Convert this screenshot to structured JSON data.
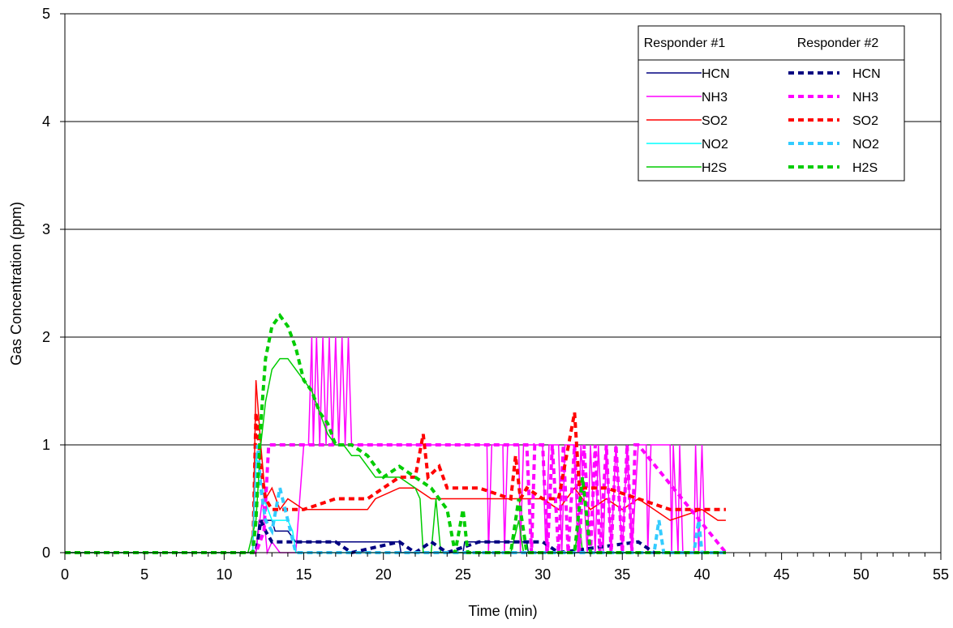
{
  "chart_data": {
    "type": "line",
    "title": "",
    "xlabel": "Time (min)",
    "ylabel": "Gas Concentration (ppm)",
    "xlim": [
      0,
      55
    ],
    "ylim": [
      0,
      5
    ],
    "x_ticks": [
      0,
      5,
      10,
      15,
      20,
      25,
      30,
      35,
      40,
      45,
      50,
      55
    ],
    "y_ticks": [
      0,
      1,
      2,
      3,
      4,
      5
    ],
    "grid": "horizontal",
    "legend": {
      "placement": "top-right",
      "group_headers": [
        "Responder #1",
        "Responder #2"
      ]
    },
    "series": [
      {
        "name": "HCN",
        "group": "Responder #1",
        "color": "#000080",
        "dash": "solid",
        "points": [
          [
            0,
            0
          ],
          [
            12,
            0
          ],
          [
            12.2,
            0.3
          ],
          [
            12.5,
            0.3
          ],
          [
            13,
            0.3
          ],
          [
            13.2,
            0.2
          ],
          [
            13.5,
            0.2
          ],
          [
            14,
            0.2
          ],
          [
            14.5,
            0.1
          ],
          [
            16,
            0.1
          ],
          [
            21,
            0.1
          ],
          [
            21.1,
            0
          ],
          [
            25,
            0
          ],
          [
            25.1,
            0.1
          ],
          [
            29,
            0.1
          ],
          [
            29.1,
            0
          ],
          [
            41.5,
            0
          ]
        ]
      },
      {
        "name": "NH3",
        "group": "Responder #1",
        "color": "#FF00FF",
        "dash": "solid",
        "points": [
          [
            0,
            0
          ],
          [
            12,
            0
          ],
          [
            12.4,
            0.5
          ],
          [
            12.7,
            0
          ],
          [
            13,
            0.1
          ],
          [
            13.5,
            0
          ],
          [
            14,
            0
          ],
          [
            14.5,
            0
          ],
          [
            15,
            1
          ],
          [
            15.3,
            1
          ],
          [
            15.5,
            2
          ],
          [
            15.6,
            1
          ],
          [
            15.8,
            2
          ],
          [
            16,
            1
          ],
          [
            16.2,
            2
          ],
          [
            16.4,
            1
          ],
          [
            16.6,
            2
          ],
          [
            16.8,
            1
          ],
          [
            17,
            2
          ],
          [
            17.2,
            1
          ],
          [
            17.4,
            2
          ],
          [
            17.6,
            1
          ],
          [
            17.8,
            2
          ],
          [
            18,
            1
          ],
          [
            21,
            1
          ],
          [
            25,
            1
          ],
          [
            26.5,
            1
          ],
          [
            26.6,
            0
          ],
          [
            26.8,
            1
          ],
          [
            27.5,
            1
          ],
          [
            27.6,
            0
          ],
          [
            27.8,
            1
          ],
          [
            28.5,
            1
          ],
          [
            28.6,
            0
          ],
          [
            28.8,
            1
          ],
          [
            30,
            1
          ],
          [
            30.2,
            0
          ],
          [
            30.4,
            1
          ],
          [
            31,
            1
          ],
          [
            31.2,
            0
          ],
          [
            31.4,
            1
          ],
          [
            32,
            1
          ],
          [
            32.2,
            0
          ],
          [
            32.4,
            1
          ],
          [
            32.8,
            0
          ],
          [
            33,
            1
          ],
          [
            33.3,
            0
          ],
          [
            33.5,
            1
          ],
          [
            33.8,
            0
          ],
          [
            34,
            1
          ],
          [
            34.3,
            0
          ],
          [
            34.6,
            1
          ],
          [
            35,
            0
          ],
          [
            35.3,
            1
          ],
          [
            35.6,
            0
          ],
          [
            36,
            1
          ],
          [
            36.5,
            1
          ],
          [
            36.6,
            0
          ],
          [
            36.8,
            1
          ],
          [
            38,
            1
          ],
          [
            38.1,
            0
          ],
          [
            38.2,
            1
          ],
          [
            38.5,
            0
          ],
          [
            38.6,
            1
          ],
          [
            38.8,
            0
          ],
          [
            39.5,
            0
          ],
          [
            39.6,
            1
          ],
          [
            39.8,
            0
          ],
          [
            40,
            1
          ],
          [
            40.2,
            0
          ],
          [
            41.5,
            0
          ]
        ]
      },
      {
        "name": "SO2",
        "group": "Responder #1",
        "color": "#FF0000",
        "dash": "solid",
        "points": [
          [
            0,
            0
          ],
          [
            11.8,
            0
          ],
          [
            12,
            1.6
          ],
          [
            12.3,
            1
          ],
          [
            12.6,
            0.5
          ],
          [
            13,
            0.6
          ],
          [
            13.5,
            0.4
          ],
          [
            14,
            0.5
          ],
          [
            15,
            0.4
          ],
          [
            17,
            0.4
          ],
          [
            19,
            0.4
          ],
          [
            19.5,
            0.5
          ],
          [
            21,
            0.6
          ],
          [
            22,
            0.6
          ],
          [
            23,
            0.5
          ],
          [
            23.5,
            0.5
          ],
          [
            25,
            0.5
          ],
          [
            26,
            0.5
          ],
          [
            28,
            0.5
          ],
          [
            30,
            0.5
          ],
          [
            31,
            0.4
          ],
          [
            32,
            0.6
          ],
          [
            33,
            0.4
          ],
          [
            34,
            0.5
          ],
          [
            35,
            0.4
          ],
          [
            36,
            0.5
          ],
          [
            37,
            0.4
          ],
          [
            38,
            0.3
          ],
          [
            40,
            0.4
          ],
          [
            41,
            0.3
          ],
          [
            41.5,
            0.3
          ]
        ]
      },
      {
        "name": "NO2",
        "group": "Responder #1",
        "color": "#00FFFF",
        "dash": "solid",
        "points": [
          [
            0,
            0
          ],
          [
            11.8,
            0
          ],
          [
            12,
            0.9
          ],
          [
            12.3,
            0.7
          ],
          [
            12.5,
            0.5
          ],
          [
            13,
            0.3
          ],
          [
            13.5,
            0.3
          ],
          [
            14,
            0.3
          ],
          [
            14.3,
            0.2
          ],
          [
            14.5,
            0
          ],
          [
            30,
            0
          ],
          [
            31,
            0
          ],
          [
            32,
            0
          ],
          [
            41.5,
            0
          ]
        ]
      },
      {
        "name": "H2S",
        "group": "Responder #1",
        "color": "#00CC00",
        "dash": "solid",
        "points": [
          [
            0,
            0
          ],
          [
            11.5,
            0
          ],
          [
            12,
            0.3
          ],
          [
            12.3,
            1
          ],
          [
            12.6,
            1.4
          ],
          [
            13,
            1.7
          ],
          [
            13.5,
            1.8
          ],
          [
            14,
            1.8
          ],
          [
            14.5,
            1.7
          ],
          [
            15,
            1.6
          ],
          [
            15.5,
            1.5
          ],
          [
            16,
            1.3
          ],
          [
            16.5,
            1.1
          ],
          [
            17,
            1
          ],
          [
            17.5,
            1
          ],
          [
            18,
            0.9
          ],
          [
            18.5,
            0.9
          ],
          [
            19,
            0.8
          ],
          [
            19.5,
            0.7
          ],
          [
            20,
            0.7
          ],
          [
            21,
            0.7
          ],
          [
            22,
            0.6
          ],
          [
            22.3,
            0.5
          ],
          [
            22.5,
            0
          ],
          [
            23,
            0
          ],
          [
            23.3,
            0.5
          ],
          [
            23.6,
            0
          ],
          [
            28,
            0
          ],
          [
            28.5,
            0.3
          ],
          [
            28.8,
            0
          ],
          [
            32,
            0
          ],
          [
            32.3,
            0.3
          ],
          [
            32.5,
            0
          ],
          [
            41.5,
            0
          ]
        ]
      },
      {
        "name": "HCN",
        "group": "Responder #2",
        "color": "#000080",
        "dash": "dashed",
        "points": [
          [
            0,
            0
          ],
          [
            12,
            0
          ],
          [
            12.3,
            0.3
          ],
          [
            12.6,
            0.2
          ],
          [
            13,
            0.1
          ],
          [
            14,
            0.1
          ],
          [
            15,
            0.1
          ],
          [
            17,
            0.1
          ],
          [
            18,
            0
          ],
          [
            21,
            0.1
          ],
          [
            22,
            0
          ],
          [
            23,
            0.1
          ],
          [
            24,
            0
          ],
          [
            26,
            0.1
          ],
          [
            30,
            0.1
          ],
          [
            31,
            0
          ],
          [
            36,
            0.1
          ],
          [
            37,
            0
          ],
          [
            41.5,
            0
          ]
        ]
      },
      {
        "name": "NH3",
        "group": "Responder #2",
        "color": "#FF00FF",
        "dash": "dashed",
        "points": [
          [
            0,
            0
          ],
          [
            12,
            0
          ],
          [
            12.5,
            0.2
          ],
          [
            12.8,
            1
          ],
          [
            13,
            1
          ],
          [
            15,
            1
          ],
          [
            18,
            1
          ],
          [
            20,
            1
          ],
          [
            25,
            1
          ],
          [
            27,
            1
          ],
          [
            28,
            1
          ],
          [
            29,
            1
          ],
          [
            29.3,
            0
          ],
          [
            29.5,
            1
          ],
          [
            30,
            1
          ],
          [
            30.3,
            0
          ],
          [
            30.6,
            1
          ],
          [
            31,
            0
          ],
          [
            31.3,
            1
          ],
          [
            31.6,
            0
          ],
          [
            32,
            1
          ],
          [
            32.3,
            0
          ],
          [
            32.6,
            1
          ],
          [
            33,
            0
          ],
          [
            33.3,
            1
          ],
          [
            33.6,
            0
          ],
          [
            34,
            1
          ],
          [
            34.3,
            0
          ],
          [
            34.6,
            1
          ],
          [
            35,
            0
          ],
          [
            35.3,
            1
          ],
          [
            35.6,
            0
          ],
          [
            35.8,
            1
          ],
          [
            36,
            1
          ],
          [
            41.5,
            0
          ]
        ]
      },
      {
        "name": "SO2",
        "group": "Responder #2",
        "color": "#FF0000",
        "dash": "dashed",
        "points": [
          [
            0,
            0
          ],
          [
            11.8,
            0
          ],
          [
            12,
            1.3
          ],
          [
            12.3,
            0.8
          ],
          [
            12.6,
            0.5
          ],
          [
            13,
            0.4
          ],
          [
            14,
            0.4
          ],
          [
            15,
            0.4
          ],
          [
            17,
            0.5
          ],
          [
            19,
            0.5
          ],
          [
            20,
            0.6
          ],
          [
            21,
            0.7
          ],
          [
            22,
            0.7
          ],
          [
            22.5,
            1.1
          ],
          [
            22.8,
            0.7
          ],
          [
            23.5,
            0.8
          ],
          [
            24,
            0.6
          ],
          [
            26,
            0.6
          ],
          [
            28,
            0.5
          ],
          [
            28.3,
            0.9
          ],
          [
            28.6,
            0.5
          ],
          [
            29,
            0.6
          ],
          [
            30,
            0.5
          ],
          [
            31,
            0.5
          ],
          [
            32,
            1.3
          ],
          [
            32.3,
            0.6
          ],
          [
            34,
            0.6
          ],
          [
            36,
            0.5
          ],
          [
            38,
            0.4
          ],
          [
            40,
            0.4
          ],
          [
            41,
            0.4
          ],
          [
            41.5,
            0.4
          ]
        ]
      },
      {
        "name": "NO2",
        "group": "Responder #2",
        "color": "#33CCFF",
        "dash": "dashed",
        "points": [
          [
            0,
            0
          ],
          [
            11.8,
            0
          ],
          [
            12.1,
            1
          ],
          [
            12.3,
            0.6
          ],
          [
            12.6,
            0.3
          ],
          [
            13,
            0.2
          ],
          [
            13.5,
            0.6
          ],
          [
            14,
            0.3
          ],
          [
            14.5,
            0
          ],
          [
            30,
            0
          ],
          [
            37,
            0
          ],
          [
            37.3,
            0.3
          ],
          [
            37.6,
            0
          ],
          [
            39.5,
            0
          ],
          [
            39.8,
            0.3
          ],
          [
            40,
            0
          ],
          [
            41.5,
            0
          ]
        ]
      },
      {
        "name": "H2S",
        "group": "Responder #2",
        "color": "#00CC00",
        "dash": "dashed",
        "points": [
          [
            0,
            0
          ],
          [
            11.8,
            0
          ],
          [
            12,
            0.3
          ],
          [
            12.3,
            1.2
          ],
          [
            12.6,
            1.8
          ],
          [
            13,
            2.1
          ],
          [
            13.5,
            2.2
          ],
          [
            14,
            2.1
          ],
          [
            14.5,
            1.9
          ],
          [
            15,
            1.6
          ],
          [
            15.5,
            1.5
          ],
          [
            16,
            1.3
          ],
          [
            16.5,
            1.2
          ],
          [
            17,
            1
          ],
          [
            18,
            1
          ],
          [
            19,
            0.9
          ],
          [
            20,
            0.7
          ],
          [
            21,
            0.8
          ],
          [
            22,
            0.7
          ],
          [
            23,
            0.6
          ],
          [
            24,
            0.4
          ],
          [
            24.5,
            0
          ],
          [
            25,
            0.4
          ],
          [
            25.3,
            0
          ],
          [
            28,
            0
          ],
          [
            28.5,
            0.5
          ],
          [
            29,
            0
          ],
          [
            32,
            0
          ],
          [
            32.5,
            0.7
          ],
          [
            33,
            0
          ],
          [
            41.5,
            0
          ]
        ]
      }
    ]
  }
}
